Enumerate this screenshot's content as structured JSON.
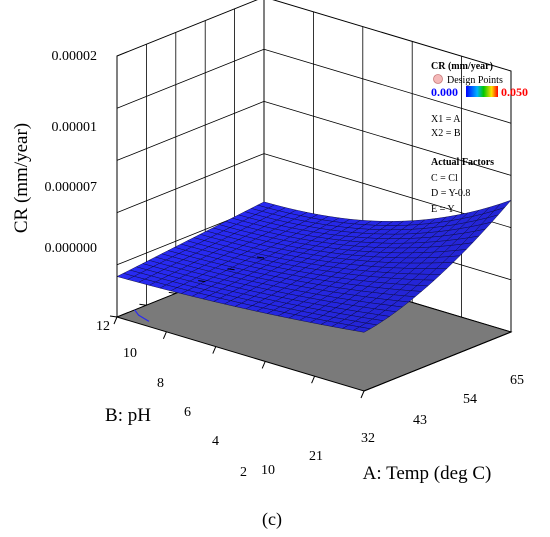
{
  "chart_data": {
    "type": "surface3d",
    "zlabel": "CR (mm/year)",
    "xlabel": "A: Temp (deg C)",
    "ylabel": "B: pH",
    "x_ticks": [
      "10",
      "21",
      "32",
      "43",
      "54",
      "65"
    ],
    "y_ticks": [
      "2",
      "4",
      "6",
      "8",
      "10",
      "12"
    ],
    "z_ticks": [
      "0.000000",
      "0.000007",
      "0.00001",
      "0.00002"
    ],
    "xlim": [
      10,
      65
    ],
    "ylim": [
      2,
      12
    ],
    "surface_color": "#2b2bf0",
    "floor_color": "#7a7a7a",
    "grid_resolution": [
      23,
      23
    ],
    "legend": {
      "title": "CR (mm/year)",
      "design_points": "Design Points",
      "range_min": "0.000",
      "range_max": "0.050",
      "min_color": "#0000ff",
      "max_color": "#ff0000",
      "lines": [
        "X1 = A",
        "X2 = B"
      ],
      "factors_title": "Actual Factors",
      "factors": [
        "C = Cl",
        "D = Y-0.8",
        "E = Y"
      ]
    }
  },
  "caption": "(c)"
}
